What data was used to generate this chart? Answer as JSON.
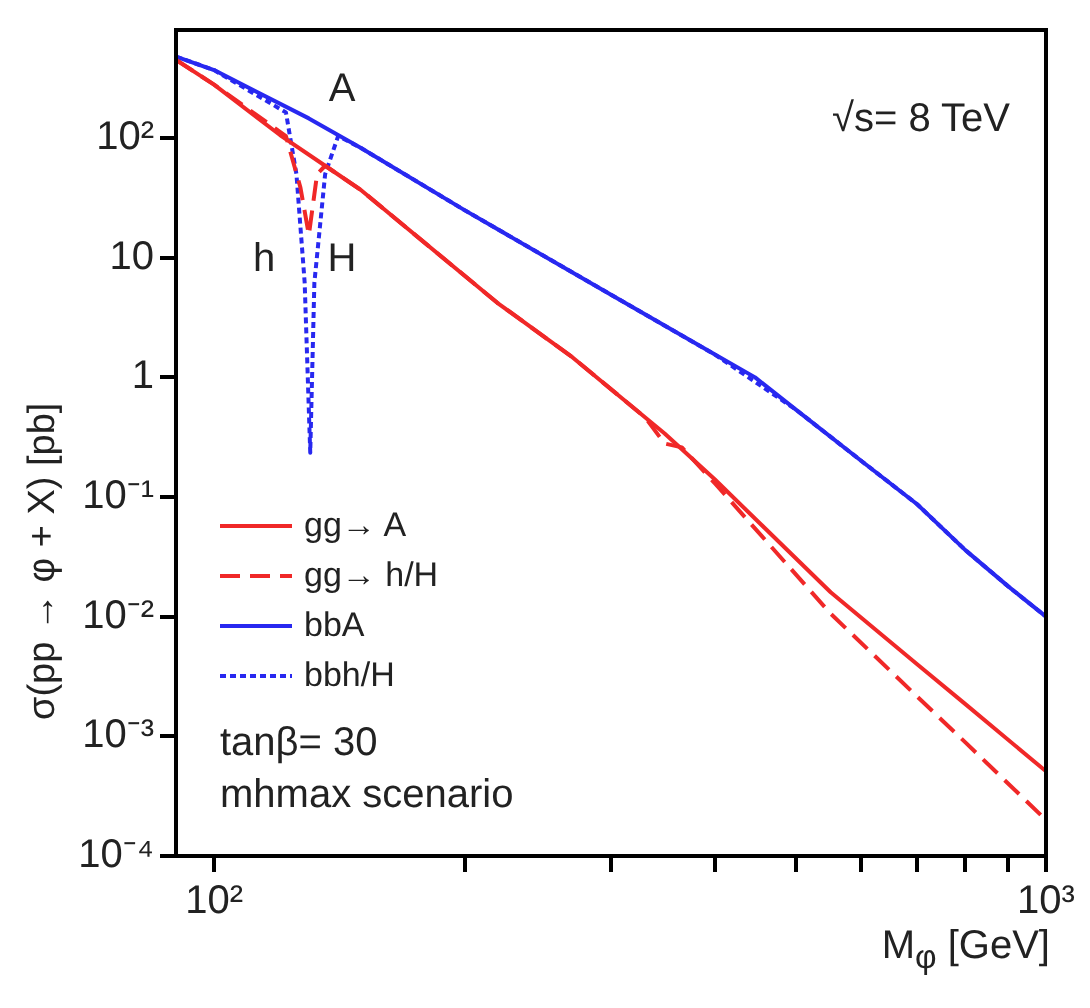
{
  "chart_data": {
    "type": "line",
    "xlabel": "M$_{φ}$  [GeV]",
    "ylabel": "σ(pp → φ + X) [pb]",
    "log": "xy",
    "xlim": [
      90,
      1000
    ],
    "ylim": [
      0.0001,
      800
    ],
    "xticks": [
      {
        "value": 100,
        "label": "10²"
      },
      {
        "value": 200,
        "label": null
      },
      {
        "value": 300,
        "label": null
      },
      {
        "value": 400,
        "label": null
      },
      {
        "value": 500,
        "label": null
      },
      {
        "value": 600,
        "label": null
      },
      {
        "value": 700,
        "label": null
      },
      {
        "value": 800,
        "label": null
      },
      {
        "value": 900,
        "label": null
      },
      {
        "value": 1000,
        "label": "10³"
      }
    ],
    "yticks": [
      {
        "value": 0.0001,
        "label": "10⁻⁴"
      },
      {
        "value": 0.001,
        "label": "10⁻³"
      },
      {
        "value": 0.01,
        "label": "10⁻²"
      },
      {
        "value": 0.1,
        "label": "10⁻¹"
      },
      1,
      10,
      {
        "value": 100,
        "label": "10²"
      }
    ],
    "grid": false,
    "legend": "bottom left",
    "marker": "none",
    "series": [
      {
        "name": "gg→ A",
        "color": "#f02828",
        "line_style": "solid",
        "x": [
          90,
          100,
          120,
          136,
          150,
          219,
          270,
          348,
          400,
          551,
          700,
          800,
          1000
        ],
        "values": [
          450,
          280,
          106,
          58.7,
          37,
          4.2,
          1.46,
          0.34,
          0.14,
          0.016,
          0.004,
          0.00186,
          0.00051
        ]
      },
      {
        "name": "gg→ h/H",
        "color": "#f02828",
        "line_style": "dashed",
        "x": [
          90,
          100,
          122,
          127,
          130,
          133,
          136,
          150,
          219,
          270,
          330,
          348,
          365,
          400,
          551,
          700,
          800,
          1000
        ],
        "values": [
          450,
          280,
          104,
          38.6,
          15.5,
          50,
          58.7,
          37,
          4.2,
          1.46,
          0.46,
          0.28,
          0.26,
          0.13,
          0.0106,
          0.00215,
          0.00089,
          0.0002
        ]
      },
      {
        "name": "bbA",
        "color": "#2828f0",
        "line_style": "solid",
        "x": [
          90,
          100,
          130,
          150,
          200,
          300,
          400,
          447,
          500,
          600,
          700,
          800,
          900,
          1000
        ],
        "values": [
          480,
          370,
          146,
          83,
          25,
          4.9,
          1.55,
          1,
          0.54,
          0.2,
          0.087,
          0.036,
          0.018,
          0.01
        ]
      },
      {
        "name": "bbh/H",
        "color": "#2828f0",
        "line_style": "dotted",
        "x": [
          90,
          100,
          122,
          125.6,
          128.5,
          130.5,
          132,
          136,
          141,
          150,
          200,
          300,
          400,
          500,
          600,
          700,
          800,
          900,
          1000
        ],
        "values": [
          480,
          370,
          164,
          50,
          6.2,
          0.235,
          6.2,
          50,
          104,
          83,
          25,
          4.9,
          1.55,
          0.54,
          0.2,
          0.087,
          0.036,
          0.018,
          0.01
        ]
      }
    ],
    "annotations": [
      "A",
      "h",
      "H",
      "√s= 8 TeV",
      "tanβ= 30",
      "mhmax scenario"
    ]
  }
}
